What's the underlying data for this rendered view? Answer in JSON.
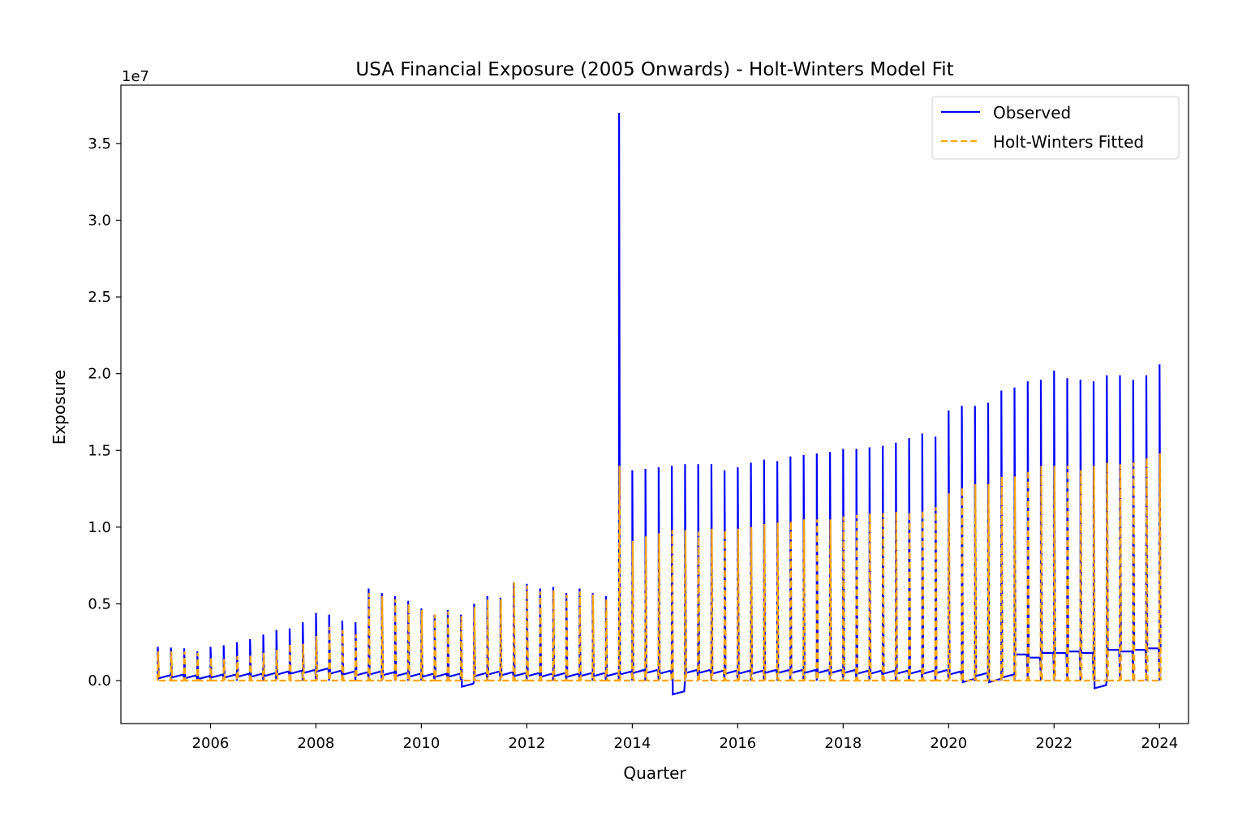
{
  "chart_data": {
    "type": "line",
    "title": "USA Financial Exposure (2005 Onwards) - Holt-Winters Model Fit",
    "xlabel": "Quarter",
    "ylabel": "Exposure",
    "y_scale_label": "1e7",
    "xlim": [
      2004.3,
      2024.55
    ],
    "ylim": [
      -2800000,
      38800000
    ],
    "x_ticks": [
      2006,
      2008,
      2010,
      2012,
      2014,
      2016,
      2018,
      2020,
      2022,
      2024
    ],
    "x_tick_labels": [
      "2006",
      "2008",
      "2010",
      "2012",
      "2014",
      "2016",
      "2018",
      "2020",
      "2022",
      "2024"
    ],
    "y_ticks": [
      0,
      5000000,
      10000000,
      15000000,
      20000000,
      25000000,
      30000000,
      35000000
    ],
    "y_tick_labels": [
      "0.0",
      "0.5",
      "1.0",
      "1.5",
      "2.0",
      "2.5",
      "3.0",
      "3.5"
    ],
    "grid": false,
    "legend_position": "top-right",
    "colors": {
      "observed": "#0000ff",
      "fitted": "#ffa500"
    },
    "quarters": [
      2005.0,
      2005.25,
      2005.5,
      2005.75,
      2006.0,
      2006.25,
      2006.5,
      2006.75,
      2007.0,
      2007.25,
      2007.5,
      2007.75,
      2008.0,
      2008.25,
      2008.5,
      2008.75,
      2009.0,
      2009.25,
      2009.5,
      2009.75,
      2010.0,
      2010.25,
      2010.5,
      2010.75,
      2011.0,
      2011.25,
      2011.5,
      2011.75,
      2012.0,
      2012.25,
      2012.5,
      2012.75,
      2013.0,
      2013.25,
      2013.5,
      2013.75,
      2014.0,
      2014.25,
      2014.5,
      2014.75,
      2015.0,
      2015.25,
      2015.5,
      2015.75,
      2016.0,
      2016.25,
      2016.5,
      2016.75,
      2017.0,
      2017.25,
      2017.5,
      2017.75,
      2018.0,
      2018.25,
      2018.5,
      2018.75,
      2019.0,
      2019.25,
      2019.5,
      2019.75,
      2020.0,
      2020.25,
      2020.5,
      2020.75,
      2021.0,
      2021.25,
      2021.5,
      2021.75,
      2022.0,
      2022.25,
      2022.5,
      2022.75,
      2023.0,
      2023.25,
      2023.5,
      2023.75,
      2024.0
    ],
    "series": [
      {
        "name": "Observed",
        "style": "solid",
        "peaks": [
          2200000,
          2150000,
          2100000,
          1900000,
          2200000,
          2300000,
          2500000,
          2700000,
          3000000,
          3300000,
          3400000,
          3800000,
          4400000,
          4300000,
          3900000,
          3800000,
          6000000,
          5700000,
          5500000,
          5200000,
          4700000,
          4300000,
          4600000,
          4300000,
          5000000,
          5500000,
          5400000,
          6400000,
          6300000,
          6000000,
          6100000,
          5700000,
          6000000,
          5700000,
          5500000,
          37000000,
          13700000,
          13800000,
          13900000,
          14000000,
          14100000,
          14100000,
          14100000,
          13700000,
          13900000,
          14200000,
          14400000,
          14300000,
          14600000,
          14700000,
          14800000,
          14900000,
          15100000,
          15100000,
          15200000,
          15300000,
          15500000,
          15800000,
          16100000,
          15900000,
          17600000,
          17900000,
          17900000,
          18100000,
          18900000,
          19100000,
          19500000,
          19600000,
          20200000,
          19700000,
          19600000,
          19500000,
          19900000,
          19900000,
          19600000,
          19900000,
          20600000
        ],
        "troughs": [
          150000,
          200000,
          150000,
          100000,
          200000,
          200000,
          250000,
          250000,
          300000,
          400000,
          450000,
          500000,
          600000,
          450000,
          400000,
          350000,
          400000,
          350000,
          300000,
          250000,
          250000,
          250000,
          250000,
          -400000,
          300000,
          400000,
          350000,
          300000,
          300000,
          250000,
          300000,
          250000,
          300000,
          300000,
          300000,
          400000,
          500000,
          500000,
          450000,
          -900000,
          500000,
          500000,
          450000,
          450000,
          450000,
          450000,
          500000,
          500000,
          500000,
          500000,
          500000,
          500000,
          500000,
          450000,
          450000,
          450000,
          450000,
          450000,
          450000,
          500000,
          400000,
          -100000,
          300000,
          -100000,
          200000,
          1700000,
          1500000,
          1800000,
          1800000,
          1900000,
          1800000,
          -500000,
          2000000,
          1900000,
          2000000,
          2100000,
          2000000
        ]
      },
      {
        "name": "Holt-Winters Fitted",
        "style": "dashed",
        "peaks": [
          1900000,
          1900000,
          1900000,
          1800000,
          1500000,
          1400000,
          1600000,
          1700000,
          1800000,
          2000000,
          2400000,
          2400000,
          2900000,
          3500000,
          3300000,
          3000000,
          5700000,
          5500000,
          5300000,
          5000000,
          4600000,
          4300000,
          4500000,
          4200000,
          4800000,
          5300000,
          5300000,
          6400000,
          6200000,
          5800000,
          5900000,
          5600000,
          5800000,
          5600000,
          5300000,
          14000000,
          9100000,
          9400000,
          9600000,
          9800000,
          9800000,
          9700000,
          9900000,
          9800000,
          9900000,
          10000000,
          10200000,
          10300000,
          10400000,
          10500000,
          10500000,
          10500000,
          10700000,
          10800000,
          10900000,
          10900000,
          11000000,
          11000000,
          11100000,
          11300000,
          12200000,
          12600000,
          12800000,
          12800000,
          13300000,
          13300000,
          13700000,
          14000000,
          14000000,
          14000000,
          13700000,
          14000000,
          14200000,
          14100000,
          14200000,
          14500000,
          14800000
        ]
      }
    ]
  }
}
